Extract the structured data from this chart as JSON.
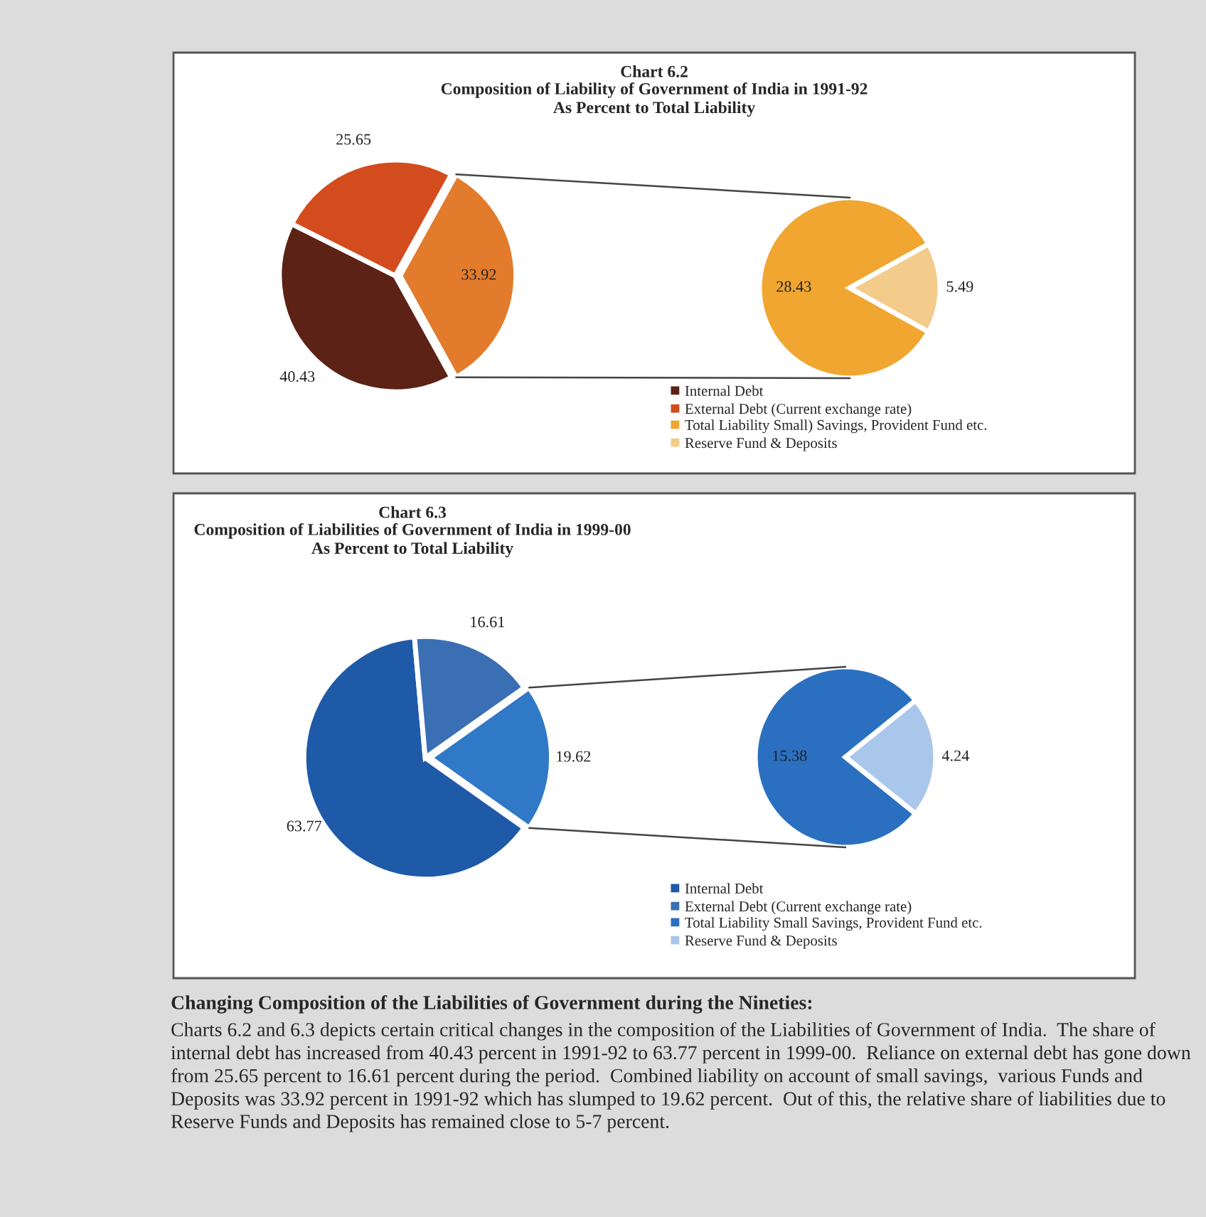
{
  "chart_data": [
    {
      "type": "pie",
      "title": "Chart 6.2",
      "subtitle": "Composition of Liability of Government of India in 1991-92\nAs Percent to Total Liability",
      "categories": [
        "Internal Debt",
        "External Debt (Current exchange rate)",
        null
      ],
      "values": [
        40.43,
        25.65,
        33.92
      ],
      "colors": [
        "#5c2216",
        "#d24c1e",
        "#e27b2c"
      ],
      "data_labels": true,
      "legend": "bottom right"
    },
    {
      "type": "pie",
      "categories": [
        "Total Liability Small) Savings, Provident Fund etc.",
        "Reserve Fund & Deposits"
      ],
      "values": [
        28.43,
        5.49
      ],
      "colors": [
        "#f0a630",
        "#f3cb8a"
      ],
      "data_labels": true,
      "legend": "bottom"
    },
    {
      "type": "pie",
      "title": "Chart 6.3",
      "subtitle": "Composition of Liabilities of Government of India in 1999-00\nAs Percent to Total Liability",
      "categories": [
        "Internal Debt",
        "External Debt (Current exchange rate)",
        null
      ],
      "values": [
        63.77,
        16.61,
        19.62
      ],
      "colors": [
        "#1f5aa8",
        "#3b6fb4",
        "#2f79c6"
      ],
      "data_labels": true,
      "legend": "bottom right"
    },
    {
      "type": "pie",
      "categories": [
        "Total Liability Small Savings, Provident Fund etc.",
        "Reserve Fund & Deposits"
      ],
      "values": [
        15.38,
        4.24
      ],
      "colors": [
        "#2b70c0",
        "#a9c7ea"
      ],
      "data_labels": true,
      "legend": "bottom",
      "annotations": [
        "Changing Composition of the Liabilities of Government during the Nineties:",
        "Charts 6.2 and 6.3 depicts certain critical changes in the composition of the Liabilities of Government of India.  The share of internal debt has increased from 40.43 percent in 1991-92 to 63.77 percent in 1999-00.  Reliance on external debt has gone down from 25.65 percent to 16.61 percent during the period.  Combined liability on account of small savings,  various Funds and Deposits was 33.92 percent in 1991-92 which has slumped to 19.62 percent.  Out of this, the relative share of liabilities due to Reserve Funds and Deposits has remained close to 5-7 percent."
      ]
    }
  ]
}
